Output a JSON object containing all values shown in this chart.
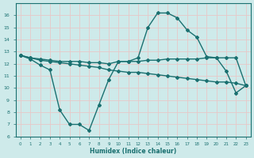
{
  "x": [
    0,
    1,
    2,
    3,
    4,
    5,
    6,
    7,
    8,
    9,
    10,
    11,
    12,
    13,
    14,
    15,
    16,
    17,
    18,
    19,
    20,
    21,
    22,
    23
  ],
  "line1": [
    12.7,
    12.4,
    11.9,
    11.5,
    8.2,
    7.0,
    7.0,
    6.5,
    8.6,
    10.7,
    12.2,
    12.2,
    12.5,
    15.0,
    16.2,
    16.2,
    15.8,
    14.8,
    14.2,
    12.6,
    12.5,
    11.4,
    9.6,
    10.2
  ],
  "line2": [
    12.7,
    12.5,
    12.4,
    12.3,
    12.2,
    12.2,
    12.2,
    12.1,
    12.1,
    12.0,
    12.2,
    12.2,
    12.2,
    12.3,
    12.3,
    12.4,
    12.4,
    12.4,
    12.4,
    12.5,
    12.5,
    12.5,
    12.5,
    10.2
  ],
  "line3": [
    12.7,
    12.5,
    12.3,
    12.2,
    12.1,
    12.0,
    11.9,
    11.8,
    11.7,
    11.5,
    11.4,
    11.3,
    11.3,
    11.2,
    11.1,
    11.0,
    10.9,
    10.8,
    10.7,
    10.6,
    10.5,
    10.5,
    10.4,
    10.2
  ],
  "color": "#1a7070",
  "bg_color": "#ceeaea",
  "grid_color": "#e8c8c8",
  "xlabel": "Humidex (Indice chaleur)",
  "ylim": [
    6,
    17
  ],
  "xlim": [
    -0.5,
    23.5
  ],
  "yticks": [
    6,
    7,
    8,
    9,
    10,
    11,
    12,
    13,
    14,
    15,
    16
  ],
  "xticks": [
    0,
    1,
    2,
    3,
    4,
    5,
    6,
    7,
    8,
    9,
    10,
    11,
    12,
    13,
    14,
    15,
    16,
    17,
    18,
    19,
    20,
    21,
    22,
    23
  ],
  "xtick_labels": [
    "0",
    "1",
    "2",
    "3",
    "4",
    "5",
    "6",
    "7",
    "8",
    "9",
    "10",
    "11",
    "12",
    "13",
    "14",
    "15",
    "16",
    "17",
    "18",
    "19",
    "20",
    "21",
    "22",
    "23"
  ],
  "marker": "D",
  "markersize": 2.0,
  "linewidth": 1.0
}
